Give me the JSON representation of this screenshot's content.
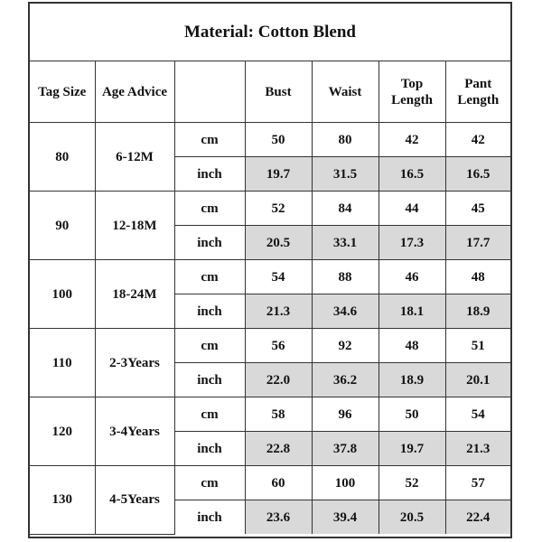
{
  "title": "Material: Cotton Blend",
  "headers": {
    "tag_size": "Tag Size",
    "age_advice": "Age Advice",
    "unit": "",
    "bust": "Bust",
    "waist": "Waist",
    "top_length": "Top Length",
    "pant_length": "Pant Length"
  },
  "rows": [
    {
      "tag": "80",
      "age": "6-12M",
      "cm": {
        "unit": "cm",
        "bust": "50",
        "waist": "80",
        "top": "42",
        "pant": "42"
      },
      "inch": {
        "unit": "inch",
        "bust": "19.7",
        "waist": "31.5",
        "top": "16.5",
        "pant": "16.5"
      }
    },
    {
      "tag": "90",
      "age": "12-18M",
      "cm": {
        "unit": "cm",
        "bust": "52",
        "waist": "84",
        "top": "44",
        "pant": "45"
      },
      "inch": {
        "unit": "inch",
        "bust": "20.5",
        "waist": "33.1",
        "top": "17.3",
        "pant": "17.7"
      }
    },
    {
      "tag": "100",
      "age": "18-24M",
      "cm": {
        "unit": "cm",
        "bust": "54",
        "waist": "88",
        "top": "46",
        "pant": "48"
      },
      "inch": {
        "unit": "inch",
        "bust": "21.3",
        "waist": "34.6",
        "top": "18.1",
        "pant": "18.9"
      }
    },
    {
      "tag": "110",
      "age": "2-3Years",
      "cm": {
        "unit": "cm",
        "bust": "56",
        "waist": "92",
        "top": "48",
        "pant": "51"
      },
      "inch": {
        "unit": "inch",
        "bust": "22.0",
        "waist": "36.2",
        "top": "18.9",
        "pant": "20.1"
      }
    },
    {
      "tag": "120",
      "age": "3-4Years",
      "cm": {
        "unit": "cm",
        "bust": "58",
        "waist": "96",
        "top": "50",
        "pant": "54"
      },
      "inch": {
        "unit": "inch",
        "bust": "22.8",
        "waist": "37.8",
        "top": "19.7",
        "pant": "21.3"
      }
    },
    {
      "tag": "130",
      "age": "4-5Years",
      "cm": {
        "unit": "cm",
        "bust": "60",
        "waist": "100",
        "top": "52",
        "pant": "57"
      },
      "inch": {
        "unit": "inch",
        "bust": "23.6",
        "waist": "39.4",
        "top": "20.5",
        "pant": "22.4"
      }
    }
  ],
  "colors": {
    "shade": "#d9d9d9",
    "border": "#333333"
  }
}
